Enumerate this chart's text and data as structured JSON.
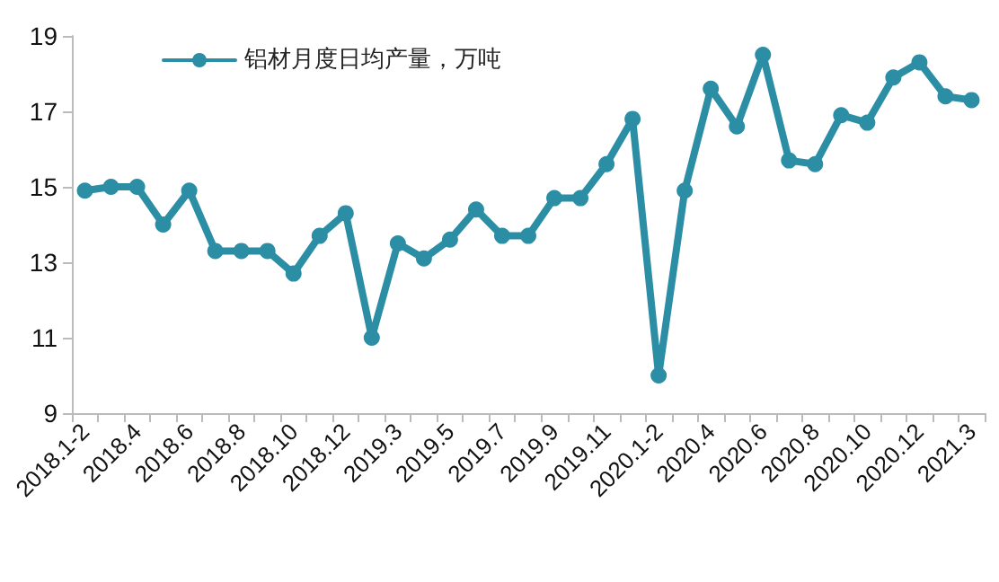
{
  "chart_data": {
    "type": "line",
    "categories": [
      "2018.1-2",
      null,
      "2018.4",
      null,
      "2018.6",
      null,
      "2018.8",
      null,
      "2018.10",
      null,
      "2018.12",
      null,
      "2019.3",
      null,
      "2019.5",
      null,
      "2019.7",
      null,
      "2019.9",
      null,
      "2019.11",
      null,
      "2020.1-2",
      null,
      "2020.4",
      null,
      "2020.6",
      null,
      "2020.8",
      null,
      "2020.10",
      null,
      "2020.12",
      null,
      "2021.3"
    ],
    "series": [
      {
        "name": "铝材月度日均产量，万吨",
        "color": "#2b8ea5",
        "values": [
          14.9,
          15.0,
          15.0,
          14.0,
          14.9,
          13.3,
          13.3,
          13.3,
          12.7,
          13.7,
          14.3,
          11.0,
          13.5,
          13.1,
          13.6,
          14.4,
          13.7,
          13.7,
          14.7,
          14.7,
          15.6,
          16.8,
          10.0,
          14.9,
          17.6,
          16.6,
          18.5,
          15.7,
          15.6,
          16.9,
          16.7,
          17.9,
          18.3,
          17.4,
          17.3
        ]
      }
    ],
    "ylim": [
      9,
      19
    ],
    "yticks": [
      9,
      11,
      13,
      15,
      17,
      19
    ],
    "grid": false,
    "legend": "top left",
    "marker": "circle",
    "line_style": "solid"
  }
}
